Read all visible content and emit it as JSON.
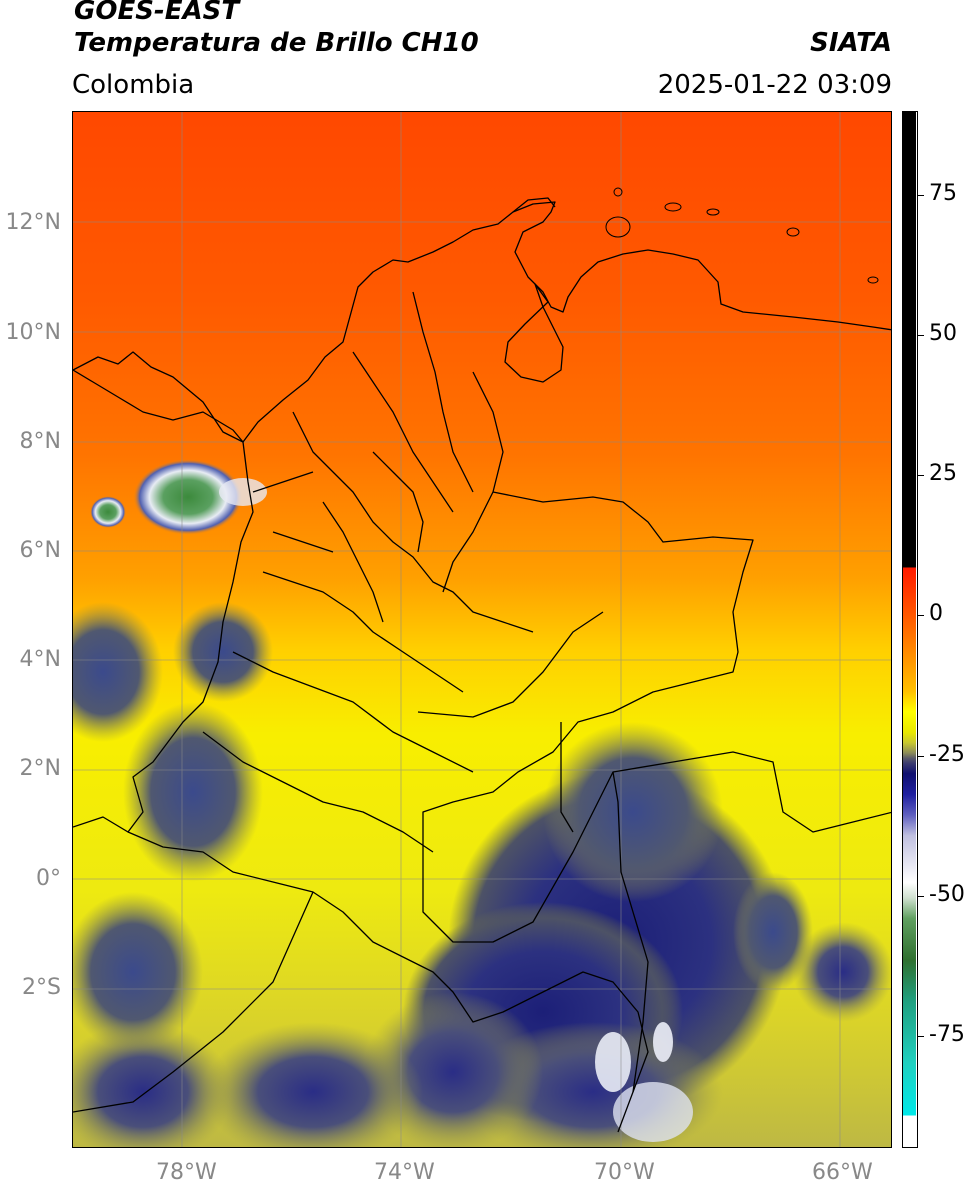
{
  "header": {
    "satellite": "GOES-EAST",
    "product": "Temperatura de Brillo CH10",
    "organization": "SIATA",
    "region": "Colombia",
    "datetime": "2025-01-22 03:09"
  },
  "map": {
    "latitude_labels": [
      "12°N",
      "10°N",
      "8°N",
      "6°N",
      "4°N",
      "2°N",
      "0°",
      "2°S"
    ],
    "longitude_labels": [
      "78°W",
      "74°W",
      "70°W",
      "66°W"
    ],
    "colors": {
      "warm_red": "#ff4a00",
      "orange": "#ff8a00",
      "yellow": "#f5f000",
      "olive": "#c8c23a",
      "gray_cloud": "#5a6070",
      "dark_blue": "#1a1e7a",
      "green": "#3a8a3a",
      "white": "#f0f0ff"
    }
  },
  "colorbar": {
    "tick_labels": [
      "75",
      "50",
      "25",
      "0",
      "-25",
      "-50",
      "-75"
    ],
    "tick_values": [
      75,
      50,
      25,
      0,
      -25,
      -50,
      -75
    ],
    "range": [
      -95,
      90
    ]
  }
}
